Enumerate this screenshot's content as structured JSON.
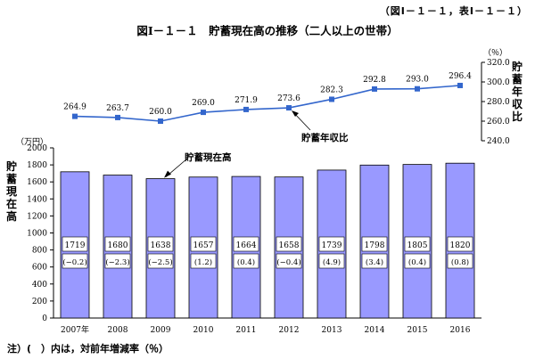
{
  "header": {
    "reference": "（図Ⅰ－１－１，表Ⅰ－１－１）",
    "title": "図Ⅰ－１－１　貯蓄現在高の推移（二人以上の世帯）"
  },
  "note": "注）(　）内は，対前年増減率（％）",
  "chart_data": [
    {
      "type": "bar",
      "name_label": "貯蓄現在高",
      "ylabel": "貯蓄現在高",
      "yunit": "（万円）",
      "ylim": [
        0,
        2000
      ],
      "yticks": [
        "0",
        "200",
        "400",
        "600",
        "800",
        "1000",
        "1200",
        "1400",
        "1600",
        "1800",
        "2000"
      ],
      "categories": [
        "2007年",
        "2008",
        "2009",
        "2010",
        "2011",
        "2012",
        "2013",
        "2014",
        "2015",
        "2016"
      ],
      "values": [
        1719,
        1680,
        1638,
        1657,
        1664,
        1658,
        1739,
        1798,
        1805,
        1820
      ],
      "value_labels": [
        "1719",
        "1680",
        "1638",
        "1657",
        "1664",
        "1658",
        "1739",
        "1798",
        "1805",
        "1820"
      ],
      "change_labels": [
        "(−0.2)",
        "(−2.3)",
        "(−2.5)",
        "(1.2)",
        "(0.4)",
        "(−0.4)",
        "(4.9)",
        "(3.4)",
        "(0.4)",
        "(0.8)"
      ],
      "bar_color": "#9999ff",
      "annotation": "貯蓄現在高"
    },
    {
      "type": "line",
      "name_label": "貯蓄年収比",
      "ylabel": "貯蓄年収比",
      "yunit": "（％）",
      "ylim": [
        240,
        320
      ],
      "yticks": [
        "240.0",
        "260.0",
        "280.0",
        "300.0",
        "320.0"
      ],
      "values": [
        264.9,
        263.7,
        260.0,
        269.0,
        271.9,
        273.6,
        282.3,
        292.8,
        293.0,
        296.4
      ],
      "value_labels": [
        "264.9",
        "263.7",
        "260.0",
        "269.0",
        "271.9",
        "273.6",
        "282.3",
        "292.8",
        "293.0",
        "296.4"
      ],
      "line_color": "#3366cc",
      "annotation": "貯蓄年収比"
    }
  ]
}
